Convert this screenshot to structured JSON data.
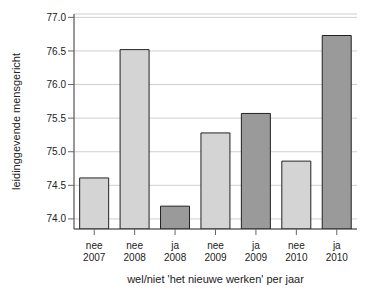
{
  "chart_data": {
    "type": "bar",
    "x_label": "wel/niet 'het nieuwe werken' per jaar",
    "y_label": "leidinggevende mensgericht",
    "categories": [
      "nee 2007",
      "nee 2008",
      "ja 2008",
      "nee 2009",
      "ja 2009",
      "nee 2010",
      "ja 2010"
    ],
    "values": [
      74.61,
      76.52,
      74.19,
      75.28,
      75.57,
      74.86,
      76.73
    ],
    "colors": [
      "#d4d4d4",
      "#d4d4d4",
      "#9a9a9a",
      "#d4d4d4",
      "#9a9a9a",
      "#d4d4d4",
      "#9a9a9a"
    ],
    "ylim": [
      73.85,
      77.05
    ],
    "yticks": [
      {
        "value": 74,
        "label": "74.0"
      },
      {
        "value": 74.5,
        "label": "74.5"
      },
      {
        "value": 75,
        "label": "75.0"
      },
      {
        "value": 75.5,
        "label": "75.5"
      },
      {
        "value": 76,
        "label": "76.0"
      },
      {
        "value": 76.5,
        "label": "76.5"
      },
      {
        "value": 77,
        "label": "77.0"
      }
    ],
    "grid": true
  }
}
